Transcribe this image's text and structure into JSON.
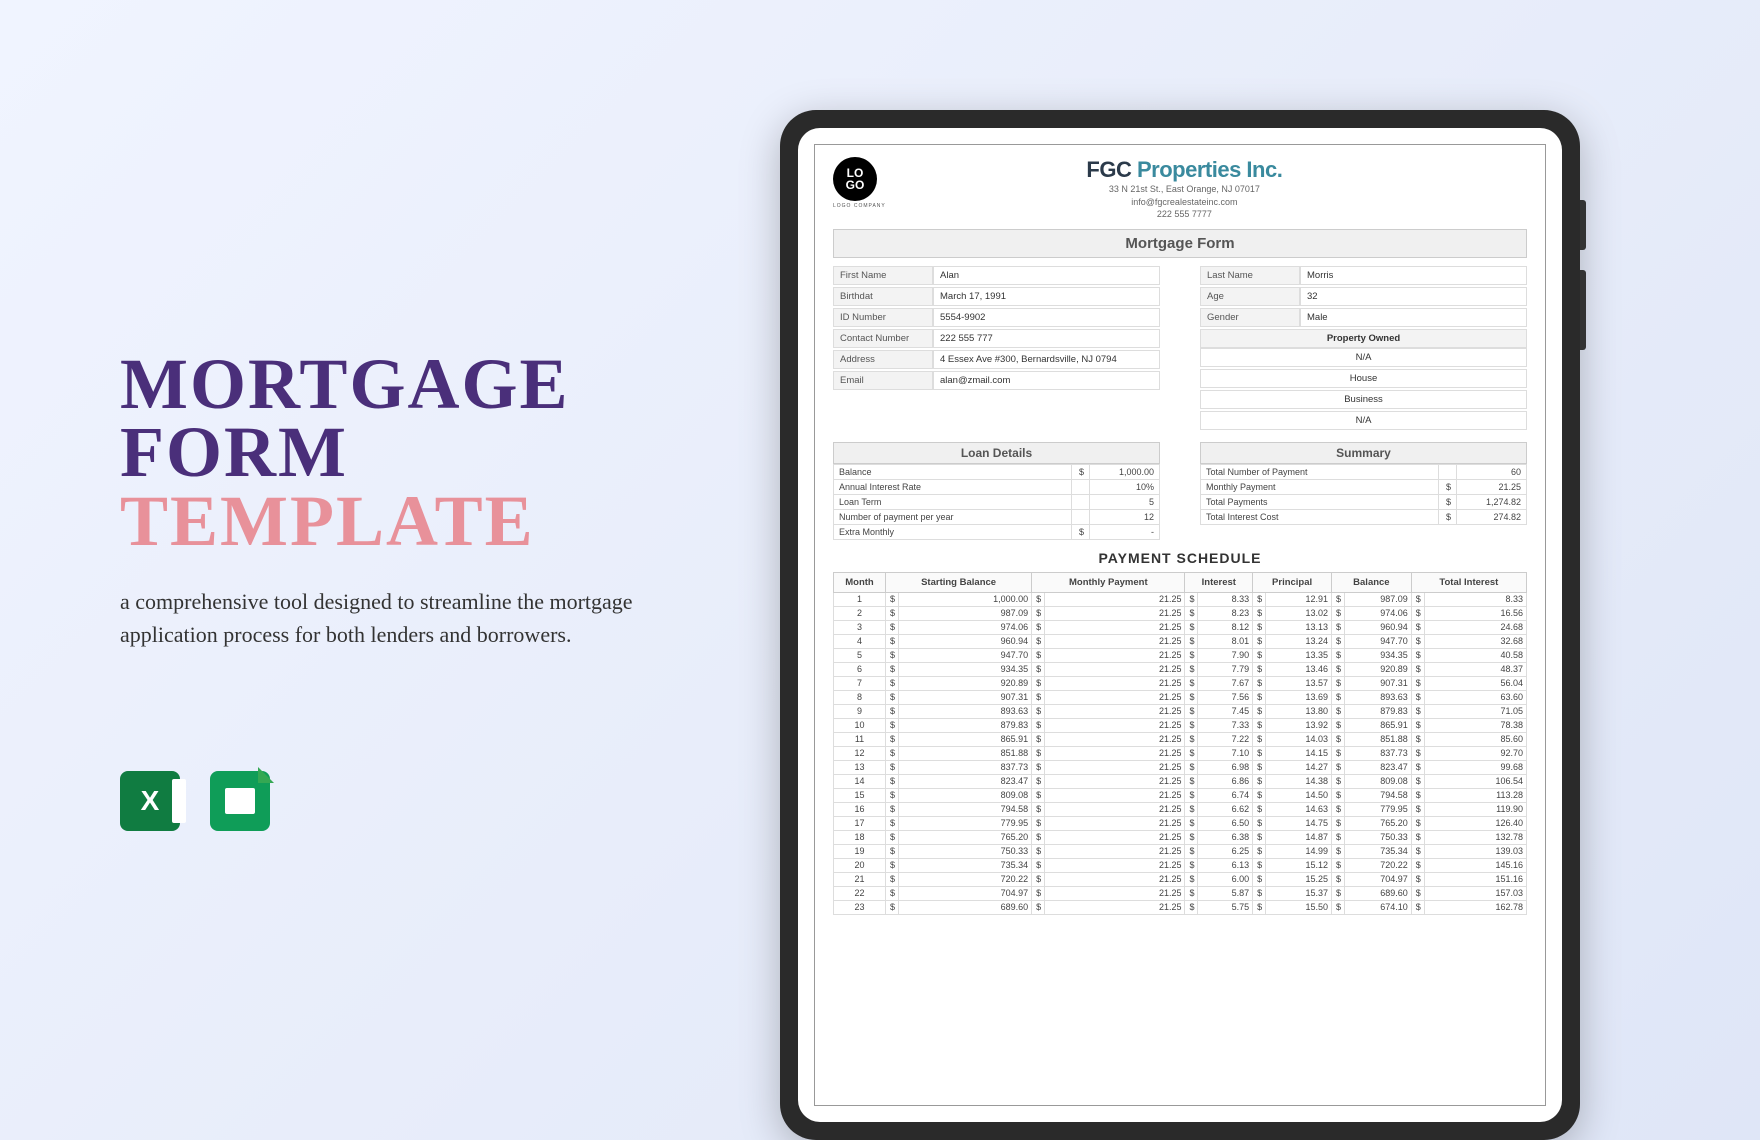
{
  "hero": {
    "title_line1": "MORTGAGE",
    "title_line2": "FORM",
    "title_line3": "TEMPLATE",
    "title_color_main": "#4a2f7a",
    "title_color_accent": "#e8919a",
    "description": "a comprehensive tool designed to streamline the mortgage application process for both lenders and borrowers."
  },
  "company": {
    "name_part1": "FGC ",
    "name_part2": "Properties Inc.",
    "name_color1": "#2b3a4a",
    "name_color2": "#3a8a9e",
    "address": "33 N 21st St., East Orange, NJ 07017",
    "email": "info@fgcrealestateinc.com",
    "phone": "222 555 7777",
    "logo_text1": "LO",
    "logo_text2": "GO",
    "logo_sub": "LOGO COMPANY"
  },
  "form": {
    "title": "Mortgage Form",
    "left": [
      {
        "label": "First Name",
        "value": "Alan"
      },
      {
        "label": "Birthdat",
        "value": "March 17, 1991"
      },
      {
        "label": "ID Number",
        "value": "5554-9902"
      },
      {
        "label": "Contact Number",
        "value": "222 555 777"
      },
      {
        "label": "Address",
        "value": "4 Essex Ave #300, Bernardsville, NJ 0794"
      },
      {
        "label": "Email",
        "value": "alan@zmail.com"
      }
    ],
    "right": [
      {
        "label": "Last Name",
        "value": "Morris"
      },
      {
        "label": "Age",
        "value": "32"
      },
      {
        "label": "Gender",
        "value": "Male"
      }
    ],
    "property_header": "Property Owned",
    "property": [
      "N/A",
      "House",
      "Business",
      "N/A"
    ]
  },
  "loan": {
    "header": "Loan Details",
    "rows": [
      {
        "l": "Balance",
        "c": "$",
        "v": "1,000.00"
      },
      {
        "l": "Annual Interest Rate",
        "c": "",
        "v": "10%"
      },
      {
        "l": "Loan Term",
        "c": "",
        "v": "5"
      },
      {
        "l": "Number of payment per year",
        "c": "",
        "v": "12"
      },
      {
        "l": "Extra Monthly",
        "c": "$",
        "v": "-"
      }
    ]
  },
  "summary": {
    "header": "Summary",
    "rows": [
      {
        "l": "Total Number of Payment",
        "c": "",
        "v": "60"
      },
      {
        "l": "Monthly Payment",
        "c": "$",
        "v": "21.25"
      },
      {
        "l": "Total Payments",
        "c": "$",
        "v": "1,274.82"
      },
      {
        "l": "Total Interest Cost",
        "c": "$",
        "v": "274.82"
      }
    ]
  },
  "schedule": {
    "title": "PAYMENT SCHEDULE",
    "headers": [
      "Month",
      "Starting Balance",
      "Monthly Payment",
      "Interest",
      "Principal",
      "Balance",
      "Total Interest"
    ],
    "rows": [
      {
        "m": 1,
        "sb": "1,000.00",
        "mp": "21.25",
        "i": "8.33",
        "p": "12.91",
        "b": "987.09",
        "ti": "8.33"
      },
      {
        "m": 2,
        "sb": "987.09",
        "mp": "21.25",
        "i": "8.23",
        "p": "13.02",
        "b": "974.06",
        "ti": "16.56"
      },
      {
        "m": 3,
        "sb": "974.06",
        "mp": "21.25",
        "i": "8.12",
        "p": "13.13",
        "b": "960.94",
        "ti": "24.68"
      },
      {
        "m": 4,
        "sb": "960.94",
        "mp": "21.25",
        "i": "8.01",
        "p": "13.24",
        "b": "947.70",
        "ti": "32.68"
      },
      {
        "m": 5,
        "sb": "947.70",
        "mp": "21.25",
        "i": "7.90",
        "p": "13.35",
        "b": "934.35",
        "ti": "40.58"
      },
      {
        "m": 6,
        "sb": "934.35",
        "mp": "21.25",
        "i": "7.79",
        "p": "13.46",
        "b": "920.89",
        "ti": "48.37"
      },
      {
        "m": 7,
        "sb": "920.89",
        "mp": "21.25",
        "i": "7.67",
        "p": "13.57",
        "b": "907.31",
        "ti": "56.04"
      },
      {
        "m": 8,
        "sb": "907.31",
        "mp": "21.25",
        "i": "7.56",
        "p": "13.69",
        "b": "893.63",
        "ti": "63.60"
      },
      {
        "m": 9,
        "sb": "893.63",
        "mp": "21.25",
        "i": "7.45",
        "p": "13.80",
        "b": "879.83",
        "ti": "71.05"
      },
      {
        "m": 10,
        "sb": "879.83",
        "mp": "21.25",
        "i": "7.33",
        "p": "13.92",
        "b": "865.91",
        "ti": "78.38"
      },
      {
        "m": 11,
        "sb": "865.91",
        "mp": "21.25",
        "i": "7.22",
        "p": "14.03",
        "b": "851.88",
        "ti": "85.60"
      },
      {
        "m": 12,
        "sb": "851.88",
        "mp": "21.25",
        "i": "7.10",
        "p": "14.15",
        "b": "837.73",
        "ti": "92.70"
      },
      {
        "m": 13,
        "sb": "837.73",
        "mp": "21.25",
        "i": "6.98",
        "p": "14.27",
        "b": "823.47",
        "ti": "99.68"
      },
      {
        "m": 14,
        "sb": "823.47",
        "mp": "21.25",
        "i": "6.86",
        "p": "14.38",
        "b": "809.08",
        "ti": "106.54"
      },
      {
        "m": 15,
        "sb": "809.08",
        "mp": "21.25",
        "i": "6.74",
        "p": "14.50",
        "b": "794.58",
        "ti": "113.28"
      },
      {
        "m": 16,
        "sb": "794.58",
        "mp": "21.25",
        "i": "6.62",
        "p": "14.63",
        "b": "779.95",
        "ti": "119.90"
      },
      {
        "m": 17,
        "sb": "779.95",
        "mp": "21.25",
        "i": "6.50",
        "p": "14.75",
        "b": "765.20",
        "ti": "126.40"
      },
      {
        "m": 18,
        "sb": "765.20",
        "mp": "21.25",
        "i": "6.38",
        "p": "14.87",
        "b": "750.33",
        "ti": "132.78"
      },
      {
        "m": 19,
        "sb": "750.33",
        "mp": "21.25",
        "i": "6.25",
        "p": "14.99",
        "b": "735.34",
        "ti": "139.03"
      },
      {
        "m": 20,
        "sb": "735.34",
        "mp": "21.25",
        "i": "6.13",
        "p": "15.12",
        "b": "720.22",
        "ti": "145.16"
      },
      {
        "m": 21,
        "sb": "720.22",
        "mp": "21.25",
        "i": "6.00",
        "p": "15.25",
        "b": "704.97",
        "ti": "151.16"
      },
      {
        "m": 22,
        "sb": "704.97",
        "mp": "21.25",
        "i": "5.87",
        "p": "15.37",
        "b": "689.60",
        "ti": "157.03"
      },
      {
        "m": 23,
        "sb": "689.60",
        "mp": "21.25",
        "i": "5.75",
        "p": "15.50",
        "b": "674.10",
        "ti": "162.78"
      }
    ]
  }
}
